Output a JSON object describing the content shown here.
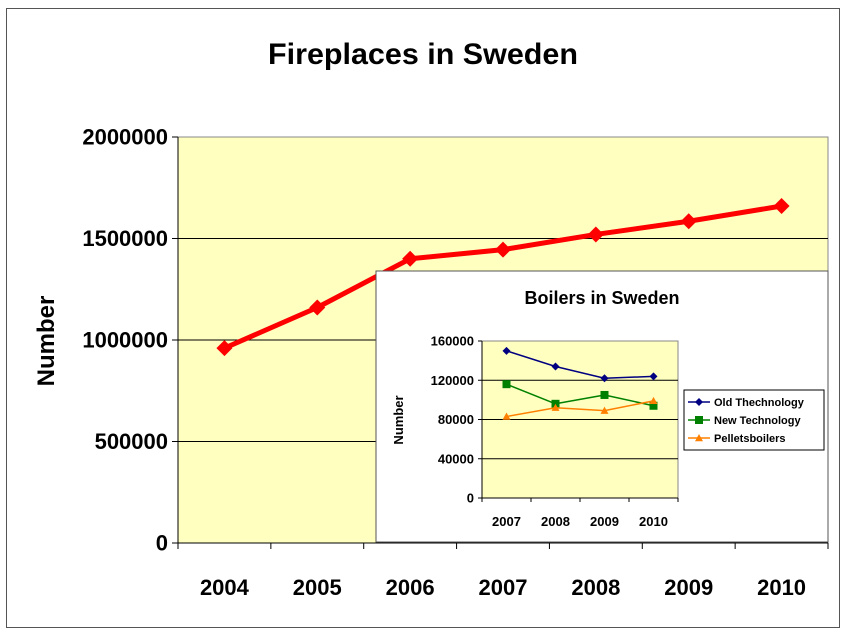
{
  "chart_data": [
    {
      "type": "line",
      "title": "Fireplaces in Sweden",
      "xlabel": "",
      "ylabel": "Number",
      "categories": [
        "2004",
        "2005",
        "2006",
        "2007",
        "2008",
        "2009",
        "2010"
      ],
      "series": [
        {
          "name": "",
          "values": [
            960000,
            1160000,
            1400000,
            1445000,
            1520000,
            1585000,
            1660000
          ],
          "color": "#ff0000",
          "marker": "diamond"
        }
      ],
      "ylim": [
        0,
        2000000
      ],
      "yticks": [
        "0",
        "500000",
        "1000000",
        "1500000",
        "2000000"
      ],
      "grid": true,
      "plot_background": "#ffffc0"
    },
    {
      "type": "line",
      "title": "Boilers in Sweden",
      "xlabel": "",
      "ylabel": "Number",
      "categories": [
        "2007",
        "2008",
        "2009",
        "2010"
      ],
      "series": [
        {
          "name": "Old Thechnology",
          "values": [
            150000,
            134000,
            122000,
            124000
          ],
          "color": "#000080",
          "marker": "diamond"
        },
        {
          "name": "New Technology",
          "values": [
            116000,
            96000,
            105000,
            94000
          ],
          "color": "#008000",
          "marker": "square"
        },
        {
          "name": "Pelletsboilers",
          "values": [
            83000,
            92000,
            89000,
            99000
          ],
          "color": "#ff8000",
          "marker": "triangle"
        }
      ],
      "ylim": [
        0,
        160000
      ],
      "yticks": [
        "0",
        "40000",
        "80000",
        "120000",
        "160000"
      ],
      "grid": true,
      "legend": "right",
      "plot_background": "#ffffc0"
    }
  ]
}
